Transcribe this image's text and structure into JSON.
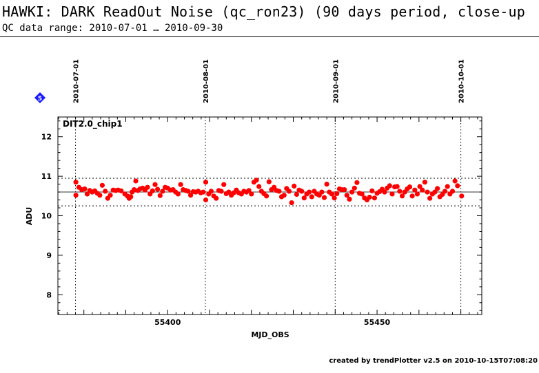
{
  "header": {
    "title": "HAWKI: DARK ReadOut Noise (qc_ron23) (90 days period, close-up",
    "subtitle": "QC data range: 2010-07-01 … 2010-09-30"
  },
  "marker": {
    "label": "5",
    "color": "#1a1aff"
  },
  "footer": {
    "text": "created by trendPlotter v2.5 on 2010-10-15T07:08:20"
  },
  "chart_data": {
    "type": "scatter",
    "panel_label": "DIT2.0_chip1",
    "xlabel": "MJD_OBS",
    "ylabel": "ADU",
    "xlim": [
      55373.8,
      55475.0
    ],
    "ylim": [
      7.5,
      12.5
    ],
    "x_ticks": [
      55400,
      55450
    ],
    "y_ticks": [
      8,
      9,
      10,
      11,
      12
    ],
    "grid": false,
    "point_color": "#ff0000",
    "reference_lines": {
      "mean": 10.6,
      "upper": 10.95,
      "lower": 10.25
    },
    "date_markers": [
      {
        "label": "2010-07-01",
        "x": 55378
      },
      {
        "label": "2010-08-01",
        "x": 55409
      },
      {
        "label": "2010-09-01",
        "x": 55440
      },
      {
        "label": "2010-10-01",
        "x": 55470
      }
    ],
    "points": [
      [
        55378.1,
        10.52
      ],
      [
        55378.1,
        10.85
      ],
      [
        55378.8,
        10.72
      ],
      [
        55379.5,
        10.66
      ],
      [
        55380.2,
        10.68
      ],
      [
        55380.8,
        10.55
      ],
      [
        55381.4,
        10.64
      ],
      [
        55382.0,
        10.6
      ],
      [
        55382.6,
        10.63
      ],
      [
        55383.2,
        10.57
      ],
      [
        55383.8,
        10.52
      ],
      [
        55384.4,
        10.77
      ],
      [
        55385.1,
        10.62
      ],
      [
        55385.7,
        10.44
      ],
      [
        55386.3,
        10.52
      ],
      [
        55387.0,
        10.65
      ],
      [
        55387.6,
        10.64
      ],
      [
        55388.2,
        10.65
      ],
      [
        55388.9,
        10.63
      ],
      [
        55389.8,
        10.55
      ],
      [
        55390.4,
        10.5
      ],
      [
        55390.8,
        10.44
      ],
      [
        55391.2,
        10.48
      ],
      [
        55391.5,
        10.6
      ],
      [
        55392.0,
        10.66
      ],
      [
        55392.4,
        10.88
      ],
      [
        55392.9,
        10.64
      ],
      [
        55393.4,
        10.68
      ],
      [
        55394.0,
        10.7
      ],
      [
        55394.6,
        10.65
      ],
      [
        55395.2,
        10.72
      ],
      [
        55395.8,
        10.55
      ],
      [
        55396.4,
        10.63
      ],
      [
        55397.0,
        10.79
      ],
      [
        55397.6,
        10.67
      ],
      [
        55398.2,
        10.51
      ],
      [
        55398.8,
        10.62
      ],
      [
        55399.4,
        10.72
      ],
      [
        55400.0,
        10.7
      ],
      [
        55400.7,
        10.65
      ],
      [
        55401.3,
        10.66
      ],
      [
        55401.9,
        10.6
      ],
      [
        55402.5,
        10.55
      ],
      [
        55403.1,
        10.79
      ],
      [
        55403.7,
        10.66
      ],
      [
        55404.3,
        10.64
      ],
      [
        55404.9,
        10.62
      ],
      [
        55405.5,
        10.52
      ],
      [
        55406.1,
        10.61
      ],
      [
        55406.7,
        10.6
      ],
      [
        55407.3,
        10.62
      ],
      [
        55407.9,
        10.58
      ],
      [
        55408.5,
        10.6
      ],
      [
        55409.1,
        10.4
      ],
      [
        55409.1,
        10.85
      ],
      [
        55409.8,
        10.55
      ],
      [
        55410.4,
        10.62
      ],
      [
        55411.0,
        10.5
      ],
      [
        55411.6,
        10.44
      ],
      [
        55412.2,
        10.64
      ],
      [
        55412.8,
        10.62
      ],
      [
        55413.4,
        10.79
      ],
      [
        55414.0,
        10.56
      ],
      [
        55414.6,
        10.6
      ],
      [
        55415.2,
        10.52
      ],
      [
        55415.8,
        10.58
      ],
      [
        55416.4,
        10.65
      ],
      [
        55417.0,
        10.58
      ],
      [
        55417.6,
        10.55
      ],
      [
        55418.2,
        10.62
      ],
      [
        55418.8,
        10.6
      ],
      [
        55419.4,
        10.64
      ],
      [
        55420.0,
        10.55
      ],
      [
        55420.6,
        10.85
      ],
      [
        55421.2,
        10.9
      ],
      [
        55421.8,
        10.74
      ],
      [
        55422.4,
        10.62
      ],
      [
        55423.0,
        10.56
      ],
      [
        55423.6,
        10.5
      ],
      [
        55424.2,
        10.86
      ],
      [
        55424.8,
        10.66
      ],
      [
        55425.4,
        10.72
      ],
      [
        55426.0,
        10.64
      ],
      [
        55426.6,
        10.62
      ],
      [
        55427.2,
        10.48
      ],
      [
        55427.8,
        10.52
      ],
      [
        55428.4,
        10.69
      ],
      [
        55429.0,
        10.62
      ],
      [
        55429.6,
        10.33
      ],
      [
        55430.2,
        10.75
      ],
      [
        55430.8,
        10.54
      ],
      [
        55431.4,
        10.65
      ],
      [
        55432.0,
        10.62
      ],
      [
        55432.6,
        10.45
      ],
      [
        55433.2,
        10.55
      ],
      [
        55433.8,
        10.6
      ],
      [
        55434.4,
        10.48
      ],
      [
        55435.0,
        10.62
      ],
      [
        55435.6,
        10.55
      ],
      [
        55436.2,
        10.52
      ],
      [
        55436.8,
        10.6
      ],
      [
        55437.4,
        10.46
      ],
      [
        55438.0,
        10.8
      ],
      [
        55438.6,
        10.6
      ],
      [
        55439.2,
        10.55
      ],
      [
        55439.8,
        10.45
      ],
      [
        55440.4,
        10.56
      ],
      [
        55441.0,
        10.68
      ],
      [
        55441.6,
        10.66
      ],
      [
        55442.2,
        10.66
      ],
      [
        55442.8,
        10.52
      ],
      [
        55443.4,
        10.42
      ],
      [
        55444.0,
        10.6
      ],
      [
        55444.6,
        10.7
      ],
      [
        55445.2,
        10.84
      ],
      [
        55445.8,
        10.57
      ],
      [
        55446.4,
        10.55
      ],
      [
        55447.0,
        10.45
      ],
      [
        55447.6,
        10.4
      ],
      [
        55448.2,
        10.47
      ],
      [
        55448.8,
        10.63
      ],
      [
        55449.4,
        10.45
      ],
      [
        55450.0,
        10.57
      ],
      [
        55450.6,
        10.61
      ],
      [
        55451.2,
        10.67
      ],
      [
        55451.8,
        10.6
      ],
      [
        55452.4,
        10.7
      ],
      [
        55453.0,
        10.76
      ],
      [
        55453.6,
        10.55
      ],
      [
        55454.2,
        10.73
      ],
      [
        55454.8,
        10.74
      ],
      [
        55455.4,
        10.62
      ],
      [
        55456.0,
        10.5
      ],
      [
        55456.6,
        10.6
      ],
      [
        55457.2,
        10.68
      ],
      [
        55457.8,
        10.73
      ],
      [
        55458.4,
        10.5
      ],
      [
        55459.0,
        10.65
      ],
      [
        55459.6,
        10.55
      ],
      [
        55460.2,
        10.74
      ],
      [
        55460.8,
        10.65
      ],
      [
        55461.4,
        10.85
      ],
      [
        55462.0,
        10.6
      ],
      [
        55462.6,
        10.44
      ],
      [
        55463.2,
        10.55
      ],
      [
        55463.8,
        10.6
      ],
      [
        55464.4,
        10.69
      ],
      [
        55465.0,
        10.48
      ],
      [
        55465.6,
        10.54
      ],
      [
        55466.2,
        10.62
      ],
      [
        55466.8,
        10.74
      ],
      [
        55467.4,
        10.55
      ],
      [
        55468.0,
        10.62
      ],
      [
        55468.6,
        10.88
      ],
      [
        55469.2,
        10.76
      ],
      [
        55470.2,
        10.5
      ]
    ]
  }
}
